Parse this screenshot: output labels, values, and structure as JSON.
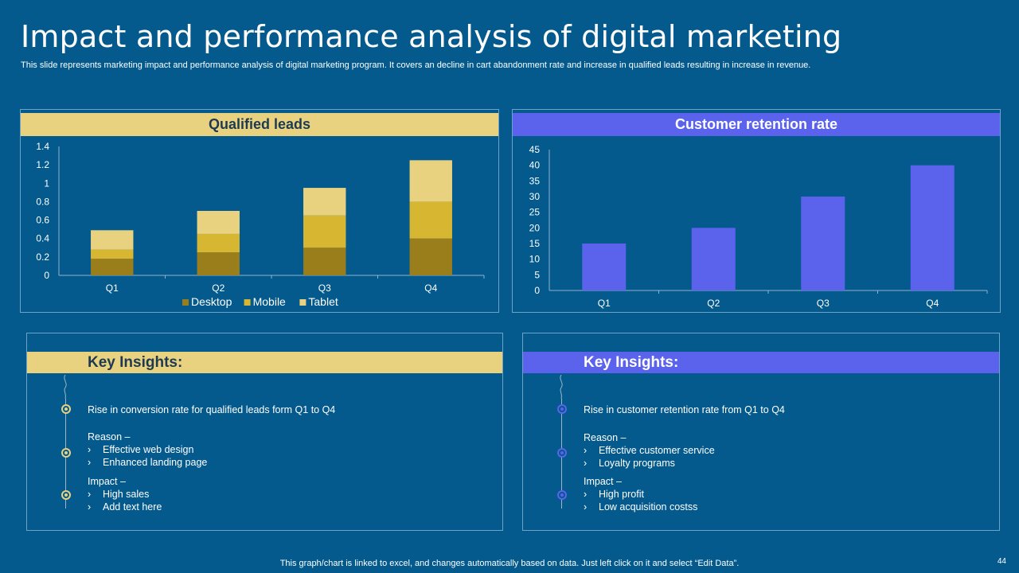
{
  "header": {
    "title": "Impact and performance analysis of digital marketing",
    "subtitle": "This slide represents marketing impact and performance analysis of digital marketing program. It covers an decline in cart abandonment rate and increase in qualified leads resulting in increase in revenue."
  },
  "colors": {
    "background": "#045a8d",
    "gold": "#e9d27f",
    "blue": "#5b63ec",
    "desktop": "#9a7e1c",
    "mobile": "#d7b632",
    "tablet": "#e9d27f"
  },
  "chart_data": [
    {
      "type": "bar",
      "stacked": true,
      "title": "Qualified leads",
      "categories": [
        "Q1",
        "Q2",
        "Q3",
        "Q4"
      ],
      "series": [
        {
          "name": "Desktop",
          "values": [
            0.18,
            0.25,
            0.3,
            0.4
          ]
        },
        {
          "name": "Mobile",
          "values": [
            0.1,
            0.2,
            0.35,
            0.4
          ]
        },
        {
          "name": "Tablet",
          "values": [
            0.21,
            0.25,
            0.3,
            0.45
          ]
        }
      ],
      "ylim": [
        0,
        1.4
      ],
      "yticks": [
        "0",
        "0.2",
        "0.4",
        "0.6",
        "0.8",
        "1",
        "1.2",
        "1.4"
      ],
      "legend": "bottom",
      "xlabel": "",
      "ylabel": ""
    },
    {
      "type": "bar",
      "title": "Customer retention rate",
      "categories": [
        "Q1",
        "Q2",
        "Q3",
        "Q4"
      ],
      "values": [
        15,
        20,
        30,
        40
      ],
      "ylim": [
        0,
        45
      ],
      "yticks": [
        "0",
        "5",
        "10",
        "15",
        "20",
        "25",
        "30",
        "35",
        "40",
        "45"
      ],
      "xlabel": "",
      "ylabel": ""
    }
  ],
  "insights_left": {
    "heading": "Key Insights:",
    "point1": "Rise in conversion rate for qualified leads form Q1 to Q4",
    "reason_label": "Reason –",
    "reasons": [
      "Effective web design",
      "Enhanced landing page"
    ],
    "impact_label": "Impact –",
    "impacts": [
      "High sales",
      "Add text here"
    ],
    "chevron": "›"
  },
  "insights_right": {
    "heading": "Key Insights:",
    "point1": "Rise in customer retention rate from Q1 to Q4",
    "reason_label": "Reason –",
    "reasons": [
      "Effective customer service",
      "Loyalty programs"
    ],
    "impact_label": "Impact –",
    "impacts": [
      "High profit",
      "Low acquisition costss"
    ],
    "chevron": "›"
  },
  "footer": {
    "note": "This graph/chart is linked to excel, and changes automatically based on data. Just left click on it and select “Edit Data”.",
    "page_number": "44"
  }
}
